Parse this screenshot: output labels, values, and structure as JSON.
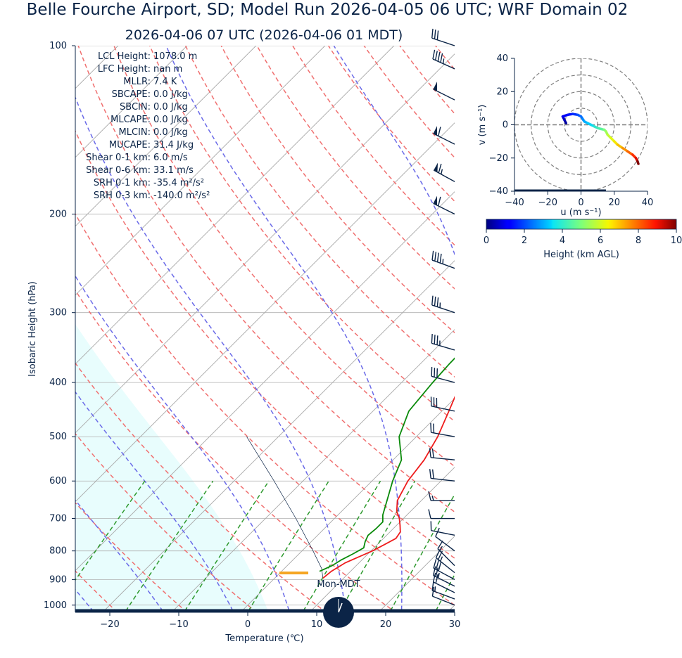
{
  "title": "Belle Fourche Airport, SD; Model Run 2026-04-05 06 UTC; WRF Domain 02",
  "subtitle": "2026-04-06 07 UTC  (2026-04-06 01 MDT)",
  "stats": [
    {
      "label": "LCL Height:",
      "value": "1078.0 m"
    },
    {
      "label": "LFC Height:",
      "value": "nan m"
    },
    {
      "label": "MLLR:",
      "value": "7.4 K"
    },
    {
      "label": "SBCAPE:",
      "value": "0.0 J/kg"
    },
    {
      "label": "SBCIN:",
      "value": "0.0 J/kg"
    },
    {
      "label": "MLCAPE:",
      "value": "0.0 J/kg"
    },
    {
      "label": "MLCIN:",
      "value": "0.0 J/kg"
    },
    {
      "label": "MUCAPE:",
      "value": "31.4 J/kg"
    },
    {
      "label": "Shear 0-1 km:",
      "value": "6.0 m/s"
    },
    {
      "label": "Shear 0-6 km:",
      "value": "33.1 m/s"
    },
    {
      "label": "SRH 0-1 km:",
      "value": "-35.4 m²/s²"
    },
    {
      "label": "SRH 0-3 km:",
      "value": "-140.0 m²/s²"
    }
  ],
  "clock_label": "Mon-MDT",
  "colors": {
    "temperature": "#ee1c1c",
    "dewpoint": "#0a8a0a",
    "dry_adiabat": "#f07070",
    "moist_adiabat": "#6a6ae8",
    "mixing_ratio": "#2e9a2e",
    "cape_fill": "#e8fdfd",
    "text": "#0b2447"
  },
  "chart_data": [
    {
      "type": "line",
      "name": "skew-t",
      "xlabel": "Temperature (℃)",
      "ylabel": "Isobaric Height (hPa)",
      "xlim": [
        -25,
        30
      ],
      "ylim": [
        1030,
        100
      ],
      "y_scale": "log",
      "x_ticks": [
        -20,
        -10,
        0,
        10,
        20,
        30
      ],
      "x_tick_labels": [
        "−20",
        "−10",
        "0",
        "10",
        "20",
        "30"
      ],
      "y_ticks": [
        100,
        200,
        300,
        400,
        500,
        600,
        700,
        800,
        900,
        1000
      ],
      "y_tick_labels": [
        "100",
        "200",
        "300",
        "400",
        "500",
        "600",
        "700",
        "800",
        "900",
        "1000"
      ],
      "grid": true,
      "temperature": [
        [
          895,
          7.0
        ],
        [
          870,
          7.2
        ],
        [
          840,
          8.0
        ],
        [
          800,
          10.2
        ],
        [
          780,
          11.0
        ],
        [
          760,
          11.8
        ],
        [
          740,
          11.5
        ],
        [
          720,
          10.5
        ],
        [
          700,
          9.4
        ],
        [
          680,
          8.0
        ],
        [
          650,
          6.5
        ],
        [
          600,
          5.2
        ],
        [
          550,
          4.5
        ],
        [
          500,
          3.1
        ],
        [
          450,
          1.0
        ],
        [
          400,
          -1.4
        ],
        [
          350,
          -3.2
        ],
        [
          310,
          -4.6
        ],
        [
          280,
          -6.5
        ],
        [
          250,
          -8.2
        ],
        [
          240,
          -9.0
        ],
        [
          220,
          -8.4
        ],
        [
          200,
          -5.0
        ],
        [
          180,
          -1.2
        ],
        [
          170,
          1.5
        ],
        [
          150,
          10.0
        ],
        [
          130,
          18.0
        ],
        [
          115,
          24.5
        ],
        [
          100,
          32.5
        ]
      ],
      "dewpoint": [
        [
          870,
          5.5
        ],
        [
          850,
          6.5
        ],
        [
          830,
          7.0
        ],
        [
          810,
          7.8
        ],
        [
          790,
          8.5
        ],
        [
          770,
          7.8
        ],
        [
          750,
          7.3
        ],
        [
          730,
          7.5
        ],
        [
          710,
          7.5
        ],
        [
          690,
          6.5
        ],
        [
          650,
          5.0
        ],
        [
          600,
          3.0
        ],
        [
          550,
          1.2
        ],
        [
          500,
          -2.5
        ],
        [
          450,
          -4.8
        ],
        [
          400,
          -5.5
        ],
        [
          370,
          -5.8
        ],
        [
          340,
          -5.9
        ],
        [
          300,
          -7.1
        ],
        [
          260,
          -9.4
        ],
        [
          250,
          -10.6
        ],
        [
          230,
          -12.8
        ],
        [
          200,
          -13.2
        ],
        [
          165,
          -14.6
        ],
        [
          150,
          -11.5
        ],
        [
          130,
          -4.0
        ],
        [
          110,
          2.5
        ],
        [
          100,
          6.5
        ]
      ],
      "parcel": [
        [
          895,
          7.0
        ],
        [
          860,
          5.4
        ],
        [
          800,
          1.6
        ],
        [
          700,
          -5.6
        ],
        [
          600,
          -14.2
        ],
        [
          500,
          -24.6
        ]
      ],
      "wind_barbs": [
        {
          "p": 1000,
          "u": 5,
          "v": -2
        },
        {
          "p": 975,
          "u": 8,
          "v": -3
        },
        {
          "p": 950,
          "u": 10,
          "v": -5
        },
        {
          "p": 925,
          "u": 12,
          "v": -6
        },
        {
          "p": 900,
          "u": 13,
          "v": -7
        },
        {
          "p": 875,
          "u": 10,
          "v": -8
        },
        {
          "p": 850,
          "u": 6,
          "v": -6
        },
        {
          "p": 800,
          "u": 4,
          "v": -3
        },
        {
          "p": 750,
          "u": 5,
          "v": -1
        },
        {
          "p": 700,
          "u": 6,
          "v": 0
        },
        {
          "p": 650,
          "u": 8,
          "v": 0
        },
        {
          "p": 600,
          "u": 9,
          "v": -1
        },
        {
          "p": 550,
          "u": 10,
          "v": -1
        },
        {
          "p": 500,
          "u": 11,
          "v": -2
        },
        {
          "p": 450,
          "u": 14,
          "v": -3
        },
        {
          "p": 400,
          "u": 15,
          "v": -4
        },
        {
          "p": 350,
          "u": 17,
          "v": -5
        },
        {
          "p": 300,
          "u": 18,
          "v": -6
        },
        {
          "p": 250,
          "u": 22,
          "v": -8
        },
        {
          "p": 200,
          "u": 28,
          "v": -14
        },
        {
          "p": 175,
          "u": 29,
          "v": -16
        },
        {
          "p": 150,
          "u": 28,
          "v": -14
        },
        {
          "p": 125,
          "u": 22,
          "v": -11
        },
        {
          "p": 110,
          "u": 20,
          "v": -9
        },
        {
          "p": 100,
          "u": 15,
          "v": -5
        }
      ]
    },
    {
      "type": "line",
      "name": "hodograph",
      "xlabel": "u (m s⁻¹)",
      "ylabel": "v (m s⁻¹)",
      "xlim": [
        -40,
        40
      ],
      "ylim": [
        -40,
        40
      ],
      "x_ticks": [
        -40,
        -20,
        0,
        20,
        40
      ],
      "x_tick_labels": [
        "−40",
        "−20",
        "0",
        "20",
        "40"
      ],
      "y_ticks": [
        -40,
        -20,
        0,
        20,
        40
      ],
      "y_tick_labels": [
        "−40",
        "−20",
        "0",
        "20",
        "40"
      ],
      "rings": [
        10,
        20,
        30,
        40
      ],
      "points": [
        [
          -9,
          1
        ],
        [
          -10,
          3
        ],
        [
          -11,
          5
        ],
        [
          -8,
          6
        ],
        [
          -5,
          6.5
        ],
        [
          -2,
          6
        ],
        [
          0,
          5
        ],
        [
          1,
          3.5
        ],
        [
          2,
          2
        ],
        [
          4,
          1
        ],
        [
          6,
          0
        ],
        [
          8,
          -1
        ],
        [
          10,
          -2
        ],
        [
          12,
          -2.5
        ],
        [
          14,
          -3
        ],
        [
          15,
          -4
        ],
        [
          16,
          -6
        ],
        [
          18,
          -8
        ],
        [
          20,
          -10
        ],
        [
          22,
          -12
        ],
        [
          25,
          -14
        ],
        [
          28,
          -16
        ],
        [
          31,
          -18
        ],
        [
          33,
          -20
        ],
        [
          34,
          -22
        ],
        [
          34.5,
          -23.5
        ]
      ],
      "heights": [
        0,
        0.3,
        0.6,
        1.0,
        1.3,
        1.6,
        2.0,
        2.3,
        2.6,
        3.0,
        3.3,
        3.6,
        4.0,
        4.3,
        4.6,
        5.0,
        5.4,
        5.8,
        6.2,
        6.6,
        7.0,
        7.5,
        8.0,
        8.6,
        9.2,
        10.0
      ]
    },
    {
      "type": "colorbar",
      "name": "height-colorbar",
      "xlabel": "Height (km AGL)",
      "range": [
        0,
        10
      ],
      "ticks": [
        0,
        2,
        4,
        6,
        8,
        10
      ],
      "tick_labels": [
        "0",
        "2",
        "4",
        "6",
        "8",
        "10"
      ]
    }
  ]
}
